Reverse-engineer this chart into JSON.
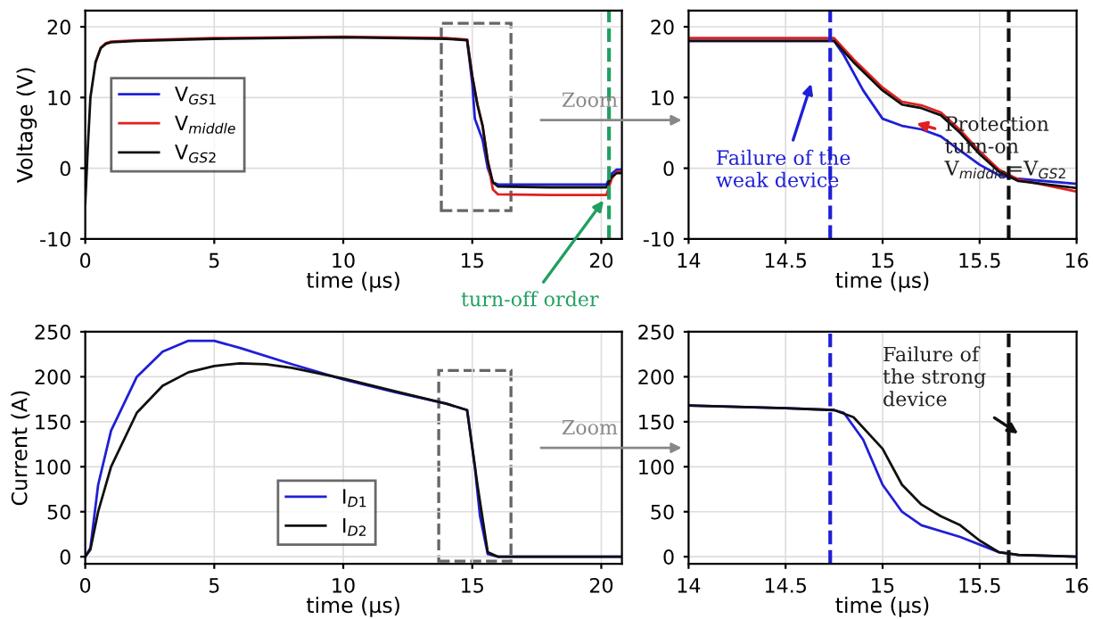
{
  "chart_data": [
    {
      "type": "line",
      "xlabel": "time (μs)",
      "ylabel": "Voltage (V)",
      "xlim": [
        0,
        20.8
      ],
      "ylim": [
        -10,
        22.3
      ],
      "xticks": [
        0,
        5,
        10,
        15,
        20
      ],
      "yticks": [
        -10,
        0,
        10,
        20
      ],
      "grid": true,
      "legend": "left",
      "series": [
        {
          "name": "V$_{GS1}$",
          "color": "#1f1fd6",
          "x": [
            14.8,
            15.0,
            15.1,
            15.2,
            15.4,
            15.6,
            15.8,
            16,
            18,
            20.2,
            20.4,
            20.6,
            20.8
          ],
          "values": [
            18.1,
            12,
            7,
            6,
            4,
            0,
            -2,
            -2.3,
            -2.3,
            -2.3,
            -0.8,
            -0.2,
            -0.2
          ]
        },
        {
          "name": "V$_{middle}$",
          "color": "#e02020",
          "x": [
            0.4,
            0.6,
            0.8,
            1,
            2,
            5,
            10,
            14,
            14.8,
            15.0,
            15.2,
            15.4,
            15.6,
            15.8,
            16,
            18,
            20.2,
            20.4,
            20.6,
            20.8
          ],
          "values": [
            15,
            17,
            17.7,
            17.9,
            18.1,
            18.4,
            18.6,
            18.4,
            18.2,
            13,
            9,
            6,
            1,
            -3,
            -3.7,
            -3.8,
            -3.8,
            -1.5,
            -0.5,
            -0.5
          ]
        },
        {
          "name": "V$_{GS2}$",
          "color": "#101010",
          "x": [
            0,
            0.1,
            0.2,
            0.4,
            0.6,
            0.8,
            1,
            2,
            5,
            10,
            14,
            14.8,
            15.0,
            15.2,
            15.4,
            15.6,
            15.8,
            16,
            18,
            20.2,
            20.4,
            20.6,
            20.8
          ],
          "values": [
            -5,
            3,
            10,
            15,
            17,
            17.6,
            17.8,
            18,
            18.3,
            18.5,
            18.3,
            18.1,
            13,
            9,
            6,
            1,
            -2,
            -2.6,
            -2.7,
            -2.7,
            -1.2,
            -0.7,
            -0.7
          ]
        }
      ],
      "ref_lines": [
        {
          "axis": "x",
          "value": 20.3,
          "color": "#20a060",
          "line_style": "dashed"
        }
      ],
      "annotations": [
        "Zoom",
        {
          "text": "turn-off order",
          "x": 20.2,
          "y": -4
        }
      ]
    },
    {
      "type": "line",
      "xlabel": "time (μs)",
      "xlim": [
        14,
        16
      ],
      "ylim": [
        -10,
        22.3
      ],
      "xticks": [
        14,
        14.5,
        15,
        15.5,
        16
      ],
      "yticks": [
        -10,
        0,
        10,
        20
      ],
      "grid": true,
      "series": [
        {
          "color": "#1f1fd6",
          "x": [
            14,
            14.5,
            14.75,
            14.8,
            14.9,
            15.0,
            15.1,
            15.2,
            15.3,
            15.4,
            15.5,
            15.6,
            15.7,
            16
          ],
          "values": [
            18,
            18,
            18,
            16,
            11,
            7,
            6,
            5.5,
            4.5,
            2.5,
            0.5,
            -1,
            -1.5,
            -2.2
          ]
        },
        {
          "color": "#e02020",
          "x": [
            14,
            14.5,
            14.75,
            14.85,
            15.0,
            15.1,
            15.2,
            15.3,
            15.4,
            15.5,
            15.6,
            15.7,
            16
          ],
          "values": [
            18.4,
            18.4,
            18.4,
            15.4,
            11.4,
            9.4,
            8.9,
            7.9,
            5.4,
            2.4,
            -0.2,
            -1.6,
            -3.3
          ]
        },
        {
          "color": "#101010",
          "x": [
            14,
            14.5,
            14.75,
            14.85,
            15.0,
            15.1,
            15.2,
            15.3,
            15.4,
            15.5,
            15.6,
            15.7,
            16
          ],
          "values": [
            18,
            18,
            18,
            15,
            11,
            9,
            8.5,
            7.5,
            5,
            2,
            -0.5,
            -1.8,
            -2.8
          ]
        }
      ],
      "ref_lines": [
        {
          "axis": "x",
          "value": 14.73,
          "color": "#1f1fd6",
          "line_style": "dashed"
        },
        {
          "axis": "x",
          "value": 15.65,
          "color": "#101010",
          "line_style": "dashed"
        }
      ],
      "annotations": [
        "Failure of the\nweak device",
        {
          "text": "Protection\nturn-on\nV$_{middle}$=V$_{GS2}$",
          "x": 15.15,
          "y": 6.5
        }
      ]
    },
    {
      "type": "line",
      "xlabel": "time (μs)",
      "ylabel": "Current (A)",
      "xlim": [
        0,
        20.8
      ],
      "ylim": [
        -8,
        250
      ],
      "xticks": [
        0,
        5,
        10,
        15,
        20
      ],
      "yticks": [
        0,
        50,
        100,
        150,
        200,
        250
      ],
      "grid": true,
      "legend": "bottom",
      "series": [
        {
          "name": "I$_{D1}$",
          "color": "#1f1fd6",
          "x": [
            0,
            0.2,
            0.5,
            1,
            2,
            3,
            4,
            5,
            6,
            8,
            10,
            12,
            14,
            14.8,
            15.1,
            15.3,
            15.6,
            16,
            20.8
          ],
          "values": [
            0,
            10,
            80,
            140,
            200,
            228,
            240,
            240,
            232,
            214,
            197,
            183,
            170,
            163,
            100,
            45,
            3,
            0,
            0
          ]
        },
        {
          "name": "I$_{D2}$",
          "color": "#101010",
          "x": [
            0,
            0.2,
            0.5,
            1,
            2,
            3,
            4,
            5,
            6,
            7,
            8,
            10,
            12,
            14,
            14.8,
            15.2,
            15.6,
            16,
            20.8
          ],
          "values": [
            0,
            8,
            50,
            100,
            160,
            190,
            205,
            212,
            215,
            214,
            210,
            198,
            184,
            170,
            163,
            80,
            5,
            0,
            0
          ]
        }
      ],
      "annotations": [
        "Zoom"
      ]
    },
    {
      "type": "line",
      "xlabel": "time (μs)",
      "xlim": [
        14,
        16
      ],
      "ylim": [
        -8,
        250
      ],
      "xticks": [
        14,
        14.5,
        15,
        15.5,
        16
      ],
      "yticks": [
        0,
        50,
        100,
        150,
        200,
        250
      ],
      "grid": true,
      "series": [
        {
          "color": "#1f1fd6",
          "x": [
            14,
            14.5,
            14.75,
            14.8,
            14.9,
            15.0,
            15.1,
            15.2,
            15.4,
            15.6,
            15.7,
            16
          ],
          "values": [
            168,
            165,
            163,
            160,
            130,
            80,
            50,
            35,
            22,
            5,
            2,
            0
          ]
        },
        {
          "color": "#101010",
          "x": [
            14,
            14.5,
            14.75,
            14.85,
            15.0,
            15.1,
            15.2,
            15.3,
            15.4,
            15.5,
            15.6,
            15.7,
            16
          ],
          "values": [
            168,
            165,
            163,
            155,
            120,
            80,
            58,
            45,
            35,
            18,
            5,
            2,
            0
          ]
        }
      ],
      "ref_lines": [
        {
          "axis": "x",
          "value": 14.73,
          "color": "#1f1fd6",
          "line_style": "dashed"
        },
        {
          "axis": "x",
          "value": 15.65,
          "color": "#101010",
          "line_style": "dashed"
        }
      ],
      "annotations": [
        "Failure of\nthe strong\ndevice"
      ]
    }
  ]
}
